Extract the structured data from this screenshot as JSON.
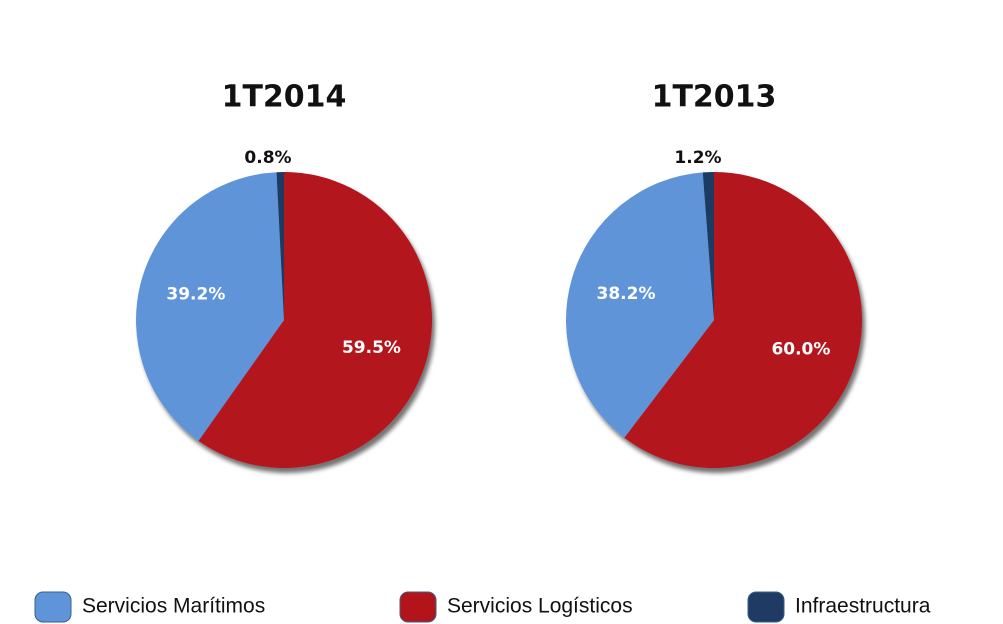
{
  "legend": {
    "labels": [
      "Servicios Marítimos",
      "Servicios Logísticos",
      "Infraestructura"
    ],
    "colors": [
      "#5f95d8",
      "#b3141a",
      "#1f3a63"
    ]
  },
  "chart_data": [
    {
      "type": "pie",
      "title": "1T2014",
      "values": [
        39.2,
        59.5,
        0.8
      ],
      "value_labels": [
        "39.2%",
        "59.5%",
        "0.8%"
      ]
    },
    {
      "type": "pie",
      "title": "1T2013",
      "values": [
        38.2,
        60.0,
        1.2
      ],
      "value_labels": [
        "38.2%",
        "60.0%",
        "1.2%"
      ]
    }
  ]
}
